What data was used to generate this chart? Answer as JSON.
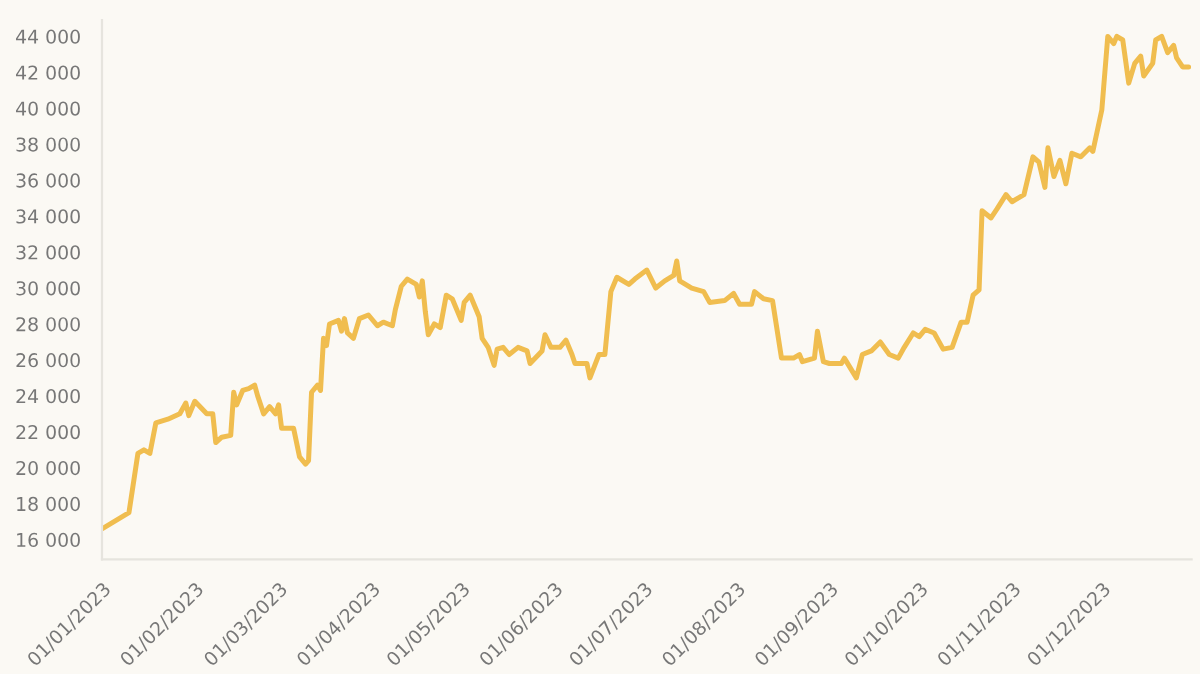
{
  "chart_data": {
    "type": "line",
    "x": [
      "2023-01-01",
      "2023-01-10",
      "2023-01-13",
      "2023-01-15",
      "2023-01-17",
      "2023-01-19",
      "2023-01-23",
      "2023-01-27",
      "2023-01-29",
      "2023-01-30",
      "2023-02-01",
      "2023-02-05",
      "2023-02-07",
      "2023-02-08",
      "2023-02-10",
      "2023-02-13",
      "2023-02-14",
      "2023-02-15",
      "2023-02-17",
      "2023-02-19",
      "2023-02-21",
      "2023-02-22",
      "2023-02-24",
      "2023-02-26",
      "2023-02-28",
      "2023-03-01",
      "2023-03-02",
      "2023-03-06",
      "2023-03-08",
      "2023-03-10",
      "2023-03-11",
      "2023-03-12",
      "2023-03-14",
      "2023-03-15",
      "2023-03-16",
      "2023-03-17",
      "2023-03-18",
      "2023-03-21",
      "2023-03-22",
      "2023-03-23",
      "2023-03-24",
      "2023-03-26",
      "2023-03-28",
      "2023-03-31",
      "2023-04-03",
      "2023-04-05",
      "2023-04-08",
      "2023-04-09",
      "2023-04-11",
      "2023-04-13",
      "2023-04-16",
      "2023-04-17",
      "2023-04-18",
      "2023-04-19",
      "2023-04-20",
      "2023-04-22",
      "2023-04-24",
      "2023-04-26",
      "2023-04-28",
      "2023-05-01",
      "2023-05-02",
      "2023-05-04",
      "2023-05-07",
      "2023-05-08",
      "2023-05-10",
      "2023-05-12",
      "2023-05-13",
      "2023-05-15",
      "2023-05-17",
      "2023-05-20",
      "2023-05-23",
      "2023-05-24",
      "2023-05-28",
      "2023-05-29",
      "2023-05-31",
      "2023-06-03",
      "2023-06-05",
      "2023-06-07",
      "2023-06-08",
      "2023-06-12",
      "2023-06-13",
      "2023-06-16",
      "2023-06-18",
      "2023-06-20",
      "2023-06-22",
      "2023-06-26",
      "2023-06-28",
      "2023-07-02",
      "2023-07-05",
      "2023-07-08",
      "2023-07-11",
      "2023-07-12",
      "2023-07-13",
      "2023-07-17",
      "2023-07-21",
      "2023-07-23",
      "2023-07-28",
      "2023-07-31",
      "2023-08-02",
      "2023-08-06",
      "2023-08-07",
      "2023-08-10",
      "2023-08-13",
      "2023-08-16",
      "2023-08-20",
      "2023-08-22",
      "2023-08-23",
      "2023-08-27",
      "2023-08-28",
      "2023-08-30",
      "2023-09-01",
      "2023-09-05",
      "2023-09-06",
      "2023-09-10",
      "2023-09-12",
      "2023-09-15",
      "2023-09-18",
      "2023-09-21",
      "2023-09-24",
      "2023-09-26",
      "2023-09-29",
      "2023-10-01",
      "2023-10-03",
      "2023-10-06",
      "2023-10-09",
      "2023-10-12",
      "2023-10-15",
      "2023-10-17",
      "2023-10-19",
      "2023-10-21",
      "2023-10-22",
      "2023-10-25",
      "2023-10-27",
      "2023-10-30",
      "2023-11-01",
      "2023-11-05",
      "2023-11-08",
      "2023-11-10",
      "2023-11-12",
      "2023-11-13",
      "2023-11-15",
      "2023-11-17",
      "2023-11-19",
      "2023-11-21",
      "2023-11-24",
      "2023-11-27",
      "2023-11-28",
      "2023-12-01",
      "2023-12-03",
      "2023-12-05",
      "2023-12-06",
      "2023-12-08",
      "2023-12-10",
      "2023-12-12",
      "2023-12-14",
      "2023-12-15",
      "2023-12-18",
      "2023-12-19",
      "2023-12-21",
      "2023-12-23",
      "2023-12-25",
      "2023-12-26",
      "2023-12-28",
      "2023-12-30"
    ],
    "series": [
      {
        "color": "#f0bd4f",
        "values": [
          16600,
          17500,
          20800,
          21000,
          20800,
          22500,
          22700,
          23000,
          23600,
          22900,
          23700,
          23000,
          23000,
          21400,
          21700,
          21800,
          24200,
          23500,
          24300,
          24400,
          24600,
          24000,
          23000,
          23400,
          23000,
          23500,
          22200,
          22200,
          20600,
          20200,
          20400,
          24200,
          24600,
          24300,
          27200,
          26800,
          28000,
          28200,
          27600,
          28300,
          27500,
          27200,
          28300,
          28500,
          27900,
          28100,
          27900,
          28800,
          30100,
          30500,
          30200,
          29500,
          30400,
          28700,
          27400,
          28000,
          27800,
          29600,
          29400,
          28200,
          29200,
          29600,
          28400,
          27200,
          26700,
          25700,
          26600,
          26700,
          26300,
          26700,
          26500,
          25800,
          26500,
          27400,
          26700,
          26700,
          27100,
          26300,
          25800,
          25800,
          25000,
          26300,
          26300,
          29800,
          30600,
          30200,
          30500,
          31000,
          30000,
          30400,
          30700,
          31500,
          30400,
          30000,
          29800,
          29200,
          29300,
          29700,
          29100,
          29100,
          29800,
          29400,
          29300,
          26100,
          26100,
          26300,
          25900,
          26100,
          27600,
          25900,
          25800,
          25800,
          26100,
          25000,
          26300,
          26500,
          27000,
          26300,
          26100,
          26700,
          27500,
          27300,
          27700,
          27500,
          26600,
          26700,
          28100,
          28100,
          29600,
          29900,
          34300,
          33900,
          34400,
          35200,
          34800,
          35200,
          37300,
          37000,
          35600,
          37800,
          36200,
          37100,
          35800,
          37500,
          37300,
          37800,
          37600,
          39900,
          44000,
          43600,
          44000,
          43800,
          41400,
          42500,
          42900,
          41800,
          42500,
          43800,
          44000,
          43100,
          43500,
          42800,
          42300,
          42300
        ]
      }
    ],
    "xlim": [
      "2023-01-01",
      "2023-12-31"
    ],
    "xticks": [
      {
        "value": "2023-01-01",
        "label": "01/01/2023"
      },
      {
        "value": "2023-02-01",
        "label": "01/02/2023"
      },
      {
        "value": "2023-03-01",
        "label": "01/03/2023"
      },
      {
        "value": "2023-04-01",
        "label": "01/04/2023"
      },
      {
        "value": "2023-05-01",
        "label": "01/05/2023"
      },
      {
        "value": "2023-06-01",
        "label": "01/06/2023"
      },
      {
        "value": "2023-07-01",
        "label": "01/07/2023"
      },
      {
        "value": "2023-08-01",
        "label": "01/08/2023"
      },
      {
        "value": "2023-09-01",
        "label": "01/09/2023"
      },
      {
        "value": "2023-10-01",
        "label": "01/10/2023"
      },
      {
        "value": "2023-11-01",
        "label": "01/11/2023"
      },
      {
        "value": "2023-12-01",
        "label": "01/12/2023"
      }
    ],
    "ylim": [
      14900,
      44900
    ],
    "yticks": [
      {
        "value": 16000,
        "label": "16 000"
      },
      {
        "value": 18000,
        "label": "18 000"
      },
      {
        "value": 20000,
        "label": "20 000"
      },
      {
        "value": 22000,
        "label": "22 000"
      },
      {
        "value": 24000,
        "label": "24 000"
      },
      {
        "value": 26000,
        "label": "26 000"
      },
      {
        "value": 28000,
        "label": "28 000"
      },
      {
        "value": 30000,
        "label": "30 000"
      },
      {
        "value": 32000,
        "label": "32 000"
      },
      {
        "value": 34000,
        "label": "34 000"
      },
      {
        "value": 36000,
        "label": "36 000"
      },
      {
        "value": 38000,
        "label": "38 000"
      },
      {
        "value": 40000,
        "label": "40 000"
      },
      {
        "value": 42000,
        "label": "42 000"
      },
      {
        "value": 44000,
        "label": "44 000"
      }
    ],
    "grid": false,
    "legend": false,
    "marker": "none",
    "line_style": "solid"
  }
}
